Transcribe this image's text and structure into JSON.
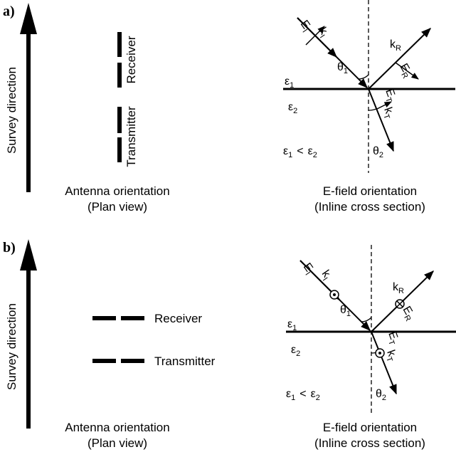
{
  "panels": [
    {
      "label": "a)",
      "survey_direction": "Survey direction",
      "antenna": {
        "receiver": "Receiver",
        "transmitter": "Transmitter",
        "caption": "Antenna orientation",
        "subcaption": "(Plan view)"
      },
      "efield": {
        "caption": "E-field orientation",
        "subcaption": "(Inline cross section)",
        "medium_1": {
          "base": "ε",
          "sub": "1"
        },
        "medium_2": {
          "base": "ε",
          "sub": "2"
        },
        "relation": {
          "left": {
            "base": "ε",
            "sub": "1"
          },
          "op": "<",
          "right": {
            "base": "ε",
            "sub": "2"
          }
        },
        "theta_1": {
          "base": "θ",
          "sub": "1"
        },
        "theta_2": {
          "base": "θ",
          "sub": "2"
        },
        "E_incident": {
          "base": "E",
          "sub": "I"
        },
        "k_incident": {
          "base": "k",
          "sub": "I"
        },
        "k_reflected": {
          "base": "k",
          "sub": "R"
        },
        "E_reflected": {
          "base": "E",
          "sub": "R"
        },
        "E_transmitted": {
          "base": "E",
          "sub": "T"
        },
        "k_transmitted": {
          "base": "k",
          "sub": "T"
        }
      }
    },
    {
      "label": "b)",
      "survey_direction": "Survey direction",
      "antenna": {
        "receiver": "Receiver",
        "transmitter": "Transmitter",
        "caption": "Antenna orientation",
        "subcaption": "(Plan view)"
      },
      "efield": {
        "caption": "E-field orientation",
        "subcaption": "(Inline cross section)",
        "medium_1": {
          "base": "ε",
          "sub": "1"
        },
        "medium_2": {
          "base": "ε",
          "sub": "2"
        },
        "relation": {
          "left": {
            "base": "ε",
            "sub": "1"
          },
          "op": "<",
          "right": {
            "base": "ε",
            "sub": "2"
          }
        },
        "theta_1": {
          "base": "θ",
          "sub": "1"
        },
        "theta_2": {
          "base": "θ",
          "sub": "2"
        },
        "E_incident": {
          "base": "E",
          "sub": "I"
        },
        "k_incident": {
          "base": "k",
          "sub": "I"
        },
        "k_reflected": {
          "base": "k",
          "sub": "R"
        },
        "E_reflected": {
          "base": "E",
          "sub": "R"
        },
        "E_transmitted": {
          "base": "E",
          "sub": "T"
        },
        "k_transmitted": {
          "base": "k",
          "sub": "T"
        }
      }
    }
  ]
}
